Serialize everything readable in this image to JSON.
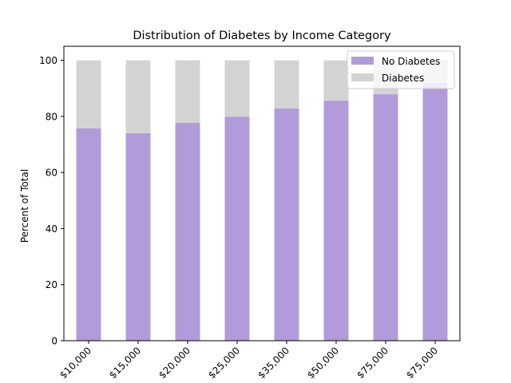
{
  "chart_data": {
    "type": "bar",
    "stacked": true,
    "title": "Distribution of Diabetes by Income Category",
    "xlabel": "",
    "ylabel": "Percent of Total",
    "ylim": [
      0,
      105
    ],
    "yticks": [
      0,
      20,
      40,
      60,
      80,
      100
    ],
    "categories": [
      "$10,000",
      "$15,000",
      "$20,000",
      "$25,000",
      "$35,000",
      "$50,000",
      "$75,000",
      "$75,000"
    ],
    "series": [
      {
        "name": "No Diabetes",
        "color": "#b19cd9",
        "values": [
          75.7,
          74.0,
          77.7,
          79.9,
          82.8,
          85.6,
          87.9,
          92.0
        ]
      },
      {
        "name": "Diabetes",
        "color": "#d3d3d3",
        "values": [
          24.3,
          26.0,
          22.3,
          20.1,
          17.2,
          14.4,
          12.1,
          8.0
        ]
      }
    ],
    "legend": {
      "position": "top-right"
    },
    "grid": false
  }
}
